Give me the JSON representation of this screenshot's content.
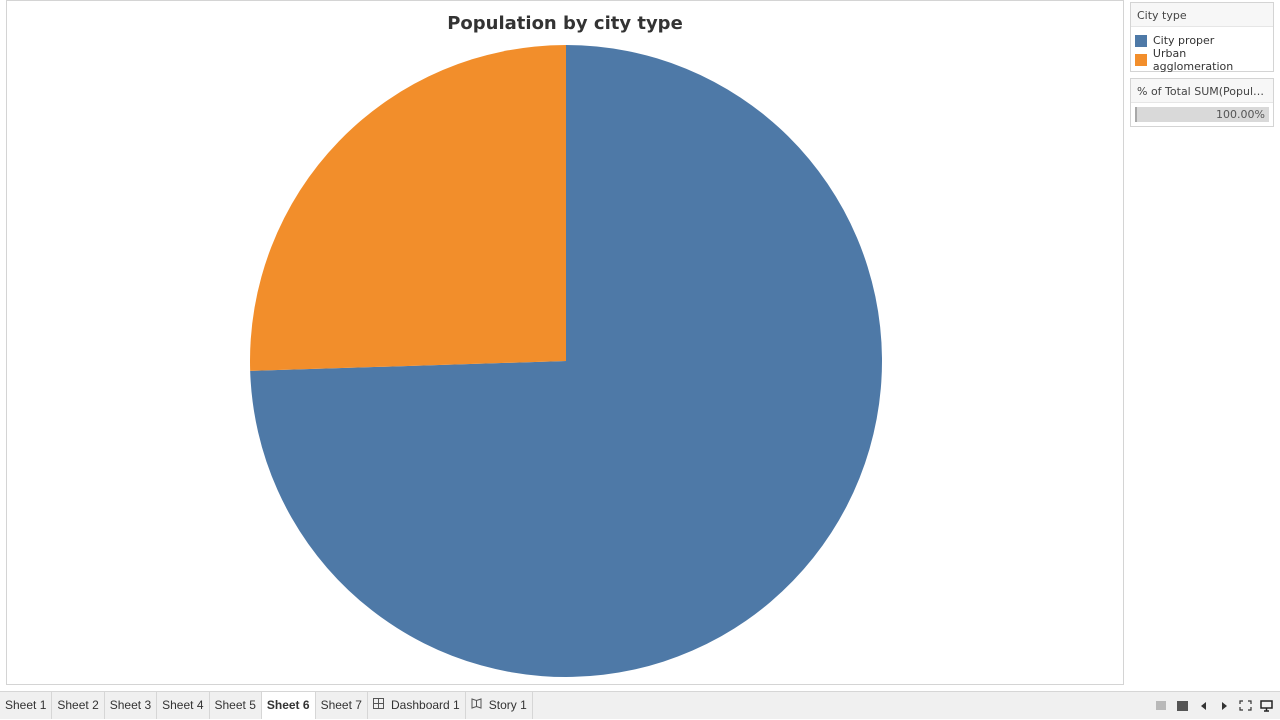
{
  "chart_data": {
    "type": "pie",
    "title": "Population by city type",
    "categories": [
      "City proper",
      "Urban agglomeration"
    ],
    "values": [
      74.5,
      25.5
    ],
    "colors": [
      "#4e79a7",
      "#f28e2b"
    ]
  },
  "legend": {
    "title": "City type",
    "items": [
      {
        "label": "City proper",
        "color": "#4e79a7"
      },
      {
        "label": "Urban agglomeration",
        "color": "#f28e2b"
      }
    ]
  },
  "measure_card": {
    "title": "% of Total SUM(Popula...",
    "value": "100.00%",
    "fraction": 1.0
  },
  "tabs": [
    {
      "label": "Sheet 1",
      "icon": "",
      "active": false
    },
    {
      "label": "Sheet 2",
      "icon": "",
      "active": false
    },
    {
      "label": "Sheet 3",
      "icon": "",
      "active": false
    },
    {
      "label": "Sheet 4",
      "icon": "",
      "active": false
    },
    {
      "label": "Sheet 5",
      "icon": "",
      "active": false
    },
    {
      "label": "Sheet 6",
      "icon": "",
      "active": true
    },
    {
      "label": "Sheet 7",
      "icon": "",
      "active": false
    },
    {
      "label": "Dashboard 1",
      "icon": "dashboard-icon",
      "active": false
    },
    {
      "label": "Story 1",
      "icon": "story-icon",
      "active": false
    }
  ],
  "controls": [
    {
      "name": "show-sheet-sorter-icon"
    },
    {
      "name": "show-filmstrip-icon"
    },
    {
      "name": "previous-sheet-icon"
    },
    {
      "name": "next-sheet-icon"
    },
    {
      "name": "fit-screen-icon"
    },
    {
      "name": "presentation-mode-icon"
    }
  ]
}
